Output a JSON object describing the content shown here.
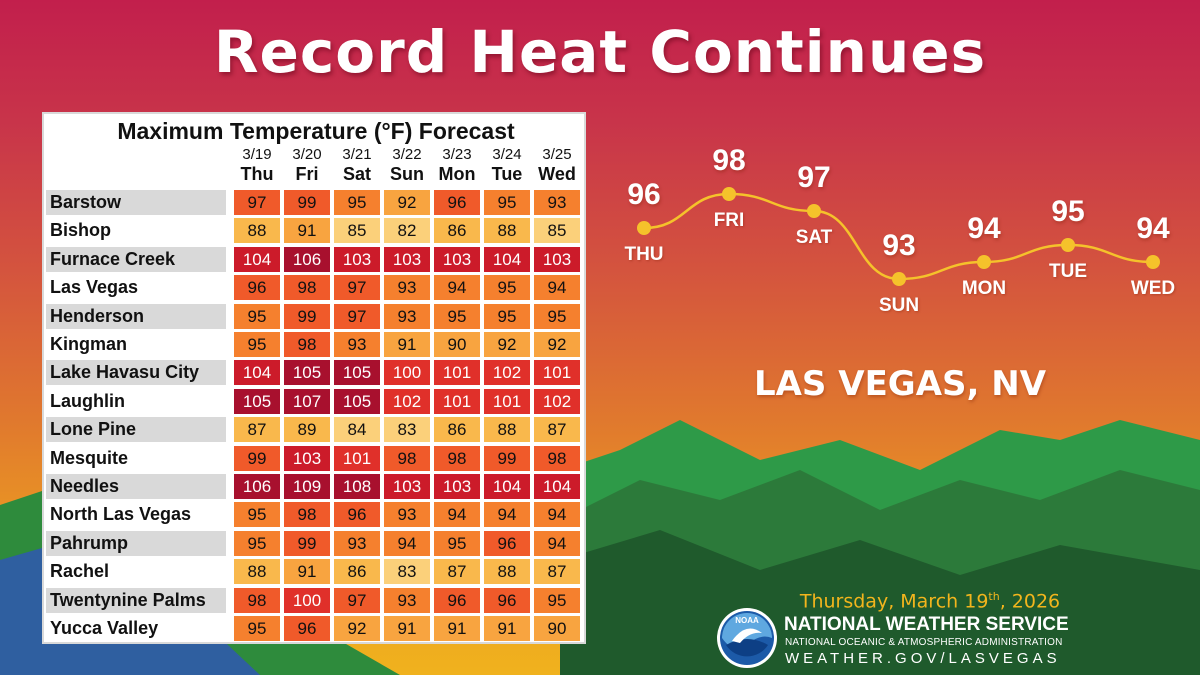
{
  "title": "Record Heat Continues",
  "location": "LAS VEGAS, NV",
  "date": {
    "text": "Thursday, March 19",
    "ordinal": "th",
    "year": ", 2026"
  },
  "agency": {
    "name": "NATIONAL WEATHER SERVICE",
    "subtitle": "NATIONAL OCEANIC & ATMOSPHERIC ADMINISTRATION",
    "url": "WEATHER.GOV/LASVEGAS",
    "logo_text": "NOAA"
  },
  "colors": {
    "bg_top": "#c21f4c",
    "bg_bottom": "#f0b21e",
    "line": "#f5c22b",
    "date_text": "#f2b51d"
  },
  "chart_data": [
    {
      "type": "table",
      "title": "Maximum Temperature (°F) Forecast",
      "dates": [
        "3/19",
        "3/20",
        "3/21",
        "3/22",
        "3/23",
        "3/24",
        "3/25"
      ],
      "days": [
        "Thu",
        "Fri",
        "Sat",
        "Sun",
        "Mon",
        "Tue",
        "Wed"
      ],
      "rows": [
        {
          "name": "Barstow",
          "values": [
            97,
            99,
            95,
            92,
            96,
            95,
            93
          ]
        },
        {
          "name": "Bishop",
          "values": [
            88,
            91,
            85,
            82,
            86,
            88,
            85
          ]
        },
        {
          "name": "Furnace Creek",
          "values": [
            104,
            106,
            103,
            103,
            103,
            104,
            103
          ]
        },
        {
          "name": "Las Vegas",
          "values": [
            96,
            98,
            97,
            93,
            94,
            95,
            94
          ]
        },
        {
          "name": "Henderson",
          "values": [
            95,
            99,
            97,
            93,
            95,
            95,
            95
          ]
        },
        {
          "name": "Kingman",
          "values": [
            95,
            98,
            93,
            91,
            90,
            92,
            92
          ]
        },
        {
          "name": "Lake Havasu City",
          "values": [
            104,
            105,
            105,
            100,
            101,
            102,
            101
          ]
        },
        {
          "name": "Laughlin",
          "values": [
            105,
            107,
            105,
            102,
            101,
            101,
            102
          ]
        },
        {
          "name": "Lone Pine",
          "values": [
            87,
            89,
            84,
            83,
            86,
            88,
            87
          ]
        },
        {
          "name": "Mesquite",
          "values": [
            99,
            103,
            101,
            98,
            98,
            99,
            98
          ]
        },
        {
          "name": "Needles",
          "values": [
            106,
            109,
            108,
            103,
            103,
            104,
            104
          ]
        },
        {
          "name": "North Las Vegas",
          "values": [
            95,
            98,
            96,
            93,
            94,
            94,
            94
          ]
        },
        {
          "name": "Pahrump",
          "values": [
            95,
            99,
            93,
            94,
            95,
            96,
            94
          ]
        },
        {
          "name": "Rachel",
          "values": [
            88,
            91,
            86,
            83,
            87,
            88,
            87
          ]
        },
        {
          "name": "Twentynine Palms",
          "values": [
            98,
            100,
            97,
            93,
            96,
            96,
            95
          ]
        },
        {
          "name": "Yucca Valley",
          "values": [
            95,
            96,
            92,
            91,
            91,
            91,
            90
          ]
        }
      ]
    },
    {
      "type": "line",
      "categories": [
        "THU",
        "FRI",
        "SAT",
        "SUN",
        "MON",
        "TUE",
        "WED"
      ],
      "values": [
        96,
        98,
        97,
        93,
        94,
        95,
        94
      ],
      "ylim": [
        90,
        100
      ]
    }
  ]
}
